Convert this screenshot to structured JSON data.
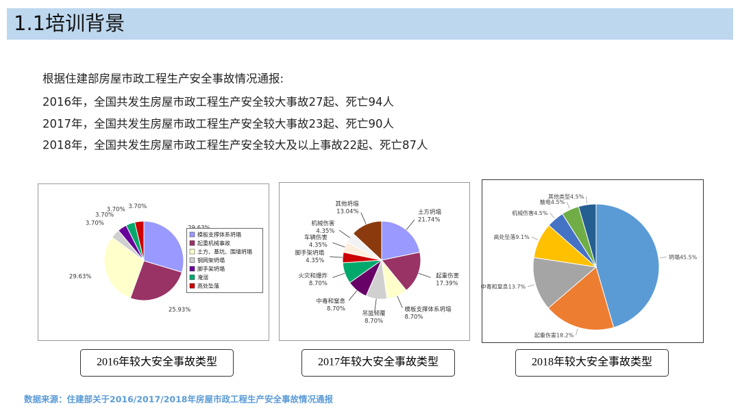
{
  "header": {
    "title": "1.1培训背景"
  },
  "intro": [
    "根据住建部房屋市政工程生产安全事故情况通报:",
    "2016年，全国共发生房屋市政工程生产安全较大事故27起、死亡94人",
    "2017年，全国共发生房屋市政工程生产安全较大事故23起、死亡90人",
    "2018年，全国共发生房屋市政工程生产安全较大及以上事故22起、死亡87人"
  ],
  "source": "数据来源：住建部关于2016/2017/2018年房屋市政工程生产安全事故情况通报",
  "chart_data": [
    {
      "type": "pie",
      "title": "2016年较大安全事故类型",
      "legend": "right",
      "categories": [
        "模板支撑体系坍塌",
        "起重机械事故",
        "土方、基坑、围墙坍塌",
        "钢网架坍塌",
        "脚手架坍塌",
        "淹溺",
        "高处坠落"
      ],
      "values": [
        29.63,
        25.93,
        29.63,
        3.7,
        3.7,
        3.7,
        3.7
      ],
      "value_labels": [
        "29.63%",
        "25.93%",
        "29.63%",
        "3.70%",
        "3.70%",
        "3.70%",
        "3.70%"
      ],
      "colors": [
        "#9999ff",
        "#993366",
        "#ffffcc",
        "#d0d0d0",
        "#660099",
        "#00a86b",
        "#cc0000"
      ]
    },
    {
      "type": "pie",
      "title": "2017年较大安全事故类型",
      "categories": [
        "土方坍塌",
        "起重伤害",
        "模板支撑体系坍塌",
        "吊篮倾覆",
        "中毒和窒息",
        "火灾和爆炸",
        "脚手架坍塌",
        "车辆伤害",
        "机械伤害",
        "其他坍塌"
      ],
      "values": [
        21.74,
        17.39,
        8.7,
        8.7,
        8.7,
        8.7,
        4.35,
        4.35,
        4.35,
        13.04
      ],
      "value_labels": [
        "21.74%",
        "17.39%",
        "8.70%",
        "8.70%",
        "8.70%",
        "8.70%",
        "4.35%",
        "4.35%",
        "4.35%",
        "13.04%"
      ],
      "colors": [
        "#9999ff",
        "#993366",
        "#ffffcc",
        "#d0d0d0",
        "#660066",
        "#00a86b",
        "#cc0000",
        "#ffeedd",
        "#f2f2f2",
        "#8b3a0e"
      ]
    },
    {
      "type": "pie",
      "title": "2018年较大安全事故类型",
      "leader_lines": true,
      "categories": [
        "坍塌",
        "起重伤害",
        "中毒和窒息",
        "高处坠落",
        "机械伤害",
        "触电",
        "其他类型"
      ],
      "values": [
        45.5,
        18.2,
        13.7,
        9.1,
        4.5,
        4.5,
        4.5
      ],
      "value_labels": [
        "45.5%",
        "18.2%",
        "13.7%",
        "9.1%",
        "4.5%",
        "4.5%",
        "4.5%"
      ],
      "colors": [
        "#5b9bd5",
        "#ed7d31",
        "#a5a5a5",
        "#ffc000",
        "#4472c4",
        "#70ad47",
        "#255e91"
      ]
    }
  ]
}
